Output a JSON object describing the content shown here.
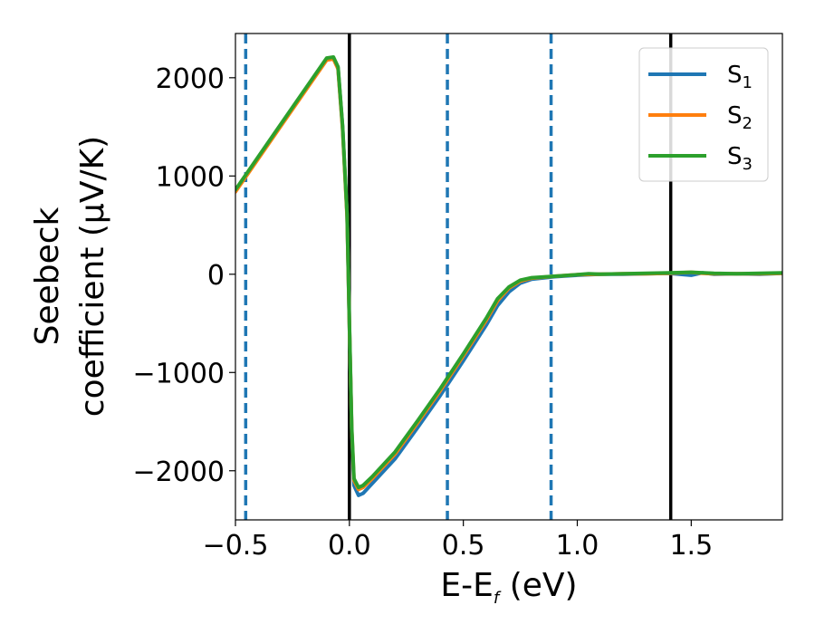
{
  "chart_data": {
    "type": "line",
    "xlabel": {
      "main": "E-E",
      "sub": "f",
      "rest": " (eV)"
    },
    "ylabel_line1": "Seebeck",
    "ylabel_line2": "coefficient  (μV/K)",
    "xlim": [
      -0.5,
      1.9
    ],
    "ylim": [
      -2500,
      2450
    ],
    "xticks": [
      -0.5,
      0.0,
      0.5,
      1.0,
      1.5
    ],
    "xtick_labels": [
      "−0.5",
      "0.0",
      "0.5",
      "1.0",
      "1.5"
    ],
    "yticks": [
      -2000,
      -1000,
      0,
      1000,
      2000
    ],
    "ytick_labels": [
      "−2000",
      "−1000",
      "0",
      "1000",
      "2000"
    ],
    "grid": false,
    "legend_position": "top-right",
    "vlines_solid": {
      "color": "#000000",
      "x": [
        0.0,
        1.41
      ]
    },
    "vlines_dashed": {
      "color": "#1f77b4",
      "x": [
        -0.455,
        0.43,
        0.885
      ]
    },
    "series": [
      {
        "name_main": "S",
        "name_sub": "1",
        "color": "#1f77b4",
        "points": [
          [
            -0.5,
            850
          ],
          [
            -0.3,
            1520
          ],
          [
            -0.1,
            2190
          ],
          [
            -0.07,
            2200
          ],
          [
            -0.05,
            2100
          ],
          [
            -0.03,
            1500
          ],
          [
            -0.01,
            600
          ],
          [
            0.0,
            -500
          ],
          [
            0.01,
            -1600
          ],
          [
            0.02,
            -2150
          ],
          [
            0.04,
            -2250
          ],
          [
            0.06,
            -2230
          ],
          [
            0.1,
            -2130
          ],
          [
            0.2,
            -1880
          ],
          [
            0.3,
            -1560
          ],
          [
            0.4,
            -1230
          ],
          [
            0.5,
            -880
          ],
          [
            0.6,
            -520
          ],
          [
            0.65,
            -320
          ],
          [
            0.7,
            -180
          ],
          [
            0.75,
            -90
          ],
          [
            0.8,
            -50
          ],
          [
            0.9,
            -25
          ],
          [
            1.0,
            -10
          ],
          [
            1.1,
            0
          ],
          [
            1.2,
            0
          ],
          [
            1.3,
            5
          ],
          [
            1.4,
            10
          ],
          [
            1.5,
            -10
          ],
          [
            1.55,
            15
          ],
          [
            1.6,
            0
          ],
          [
            1.7,
            5
          ],
          [
            1.8,
            0
          ],
          [
            1.9,
            10
          ]
        ]
      },
      {
        "name_main": "S",
        "name_sub": "2",
        "color": "#ff7f0e",
        "points": [
          [
            -0.5,
            840
          ],
          [
            -0.3,
            1510
          ],
          [
            -0.1,
            2180
          ],
          [
            -0.07,
            2190
          ],
          [
            -0.05,
            2090
          ],
          [
            -0.03,
            1480
          ],
          [
            -0.01,
            580
          ],
          [
            0.0,
            -500
          ],
          [
            0.01,
            -1580
          ],
          [
            0.02,
            -2100
          ],
          [
            0.04,
            -2190
          ],
          [
            0.06,
            -2170
          ],
          [
            0.1,
            -2080
          ],
          [
            0.2,
            -1830
          ],
          [
            0.3,
            -1510
          ],
          [
            0.4,
            -1180
          ],
          [
            0.5,
            -830
          ],
          [
            0.6,
            -470
          ],
          [
            0.65,
            -270
          ],
          [
            0.7,
            -140
          ],
          [
            0.75,
            -70
          ],
          [
            0.8,
            -40
          ],
          [
            0.9,
            -20
          ],
          [
            1.0,
            -5
          ],
          [
            1.1,
            0
          ],
          [
            1.2,
            5
          ],
          [
            1.3,
            5
          ],
          [
            1.4,
            10
          ],
          [
            1.5,
            20
          ],
          [
            1.55,
            10
          ],
          [
            1.6,
            5
          ],
          [
            1.7,
            5
          ],
          [
            1.8,
            5
          ],
          [
            1.9,
            10
          ]
        ]
      },
      {
        "name_main": "S",
        "name_sub": "3",
        "color": "#2ca02c",
        "points": [
          [
            -0.5,
            860
          ],
          [
            -0.3,
            1530
          ],
          [
            -0.1,
            2200
          ],
          [
            -0.07,
            2210
          ],
          [
            -0.05,
            2110
          ],
          [
            -0.03,
            1510
          ],
          [
            -0.01,
            610
          ],
          [
            0.0,
            -480
          ],
          [
            0.01,
            -1560
          ],
          [
            0.02,
            -2080
          ],
          [
            0.04,
            -2170
          ],
          [
            0.06,
            -2150
          ],
          [
            0.1,
            -2060
          ],
          [
            0.2,
            -1810
          ],
          [
            0.3,
            -1490
          ],
          [
            0.4,
            -1160
          ],
          [
            0.5,
            -810
          ],
          [
            0.6,
            -450
          ],
          [
            0.65,
            -250
          ],
          [
            0.7,
            -130
          ],
          [
            0.75,
            -60
          ],
          [
            0.8,
            -35
          ],
          [
            0.9,
            -20
          ],
          [
            1.0,
            -5
          ],
          [
            1.05,
            5
          ],
          [
            1.1,
            0
          ],
          [
            1.2,
            5
          ],
          [
            1.3,
            10
          ],
          [
            1.4,
            15
          ],
          [
            1.5,
            20
          ],
          [
            1.6,
            10
          ],
          [
            1.7,
            5
          ],
          [
            1.8,
            10
          ],
          [
            1.9,
            15
          ]
        ]
      }
    ]
  }
}
